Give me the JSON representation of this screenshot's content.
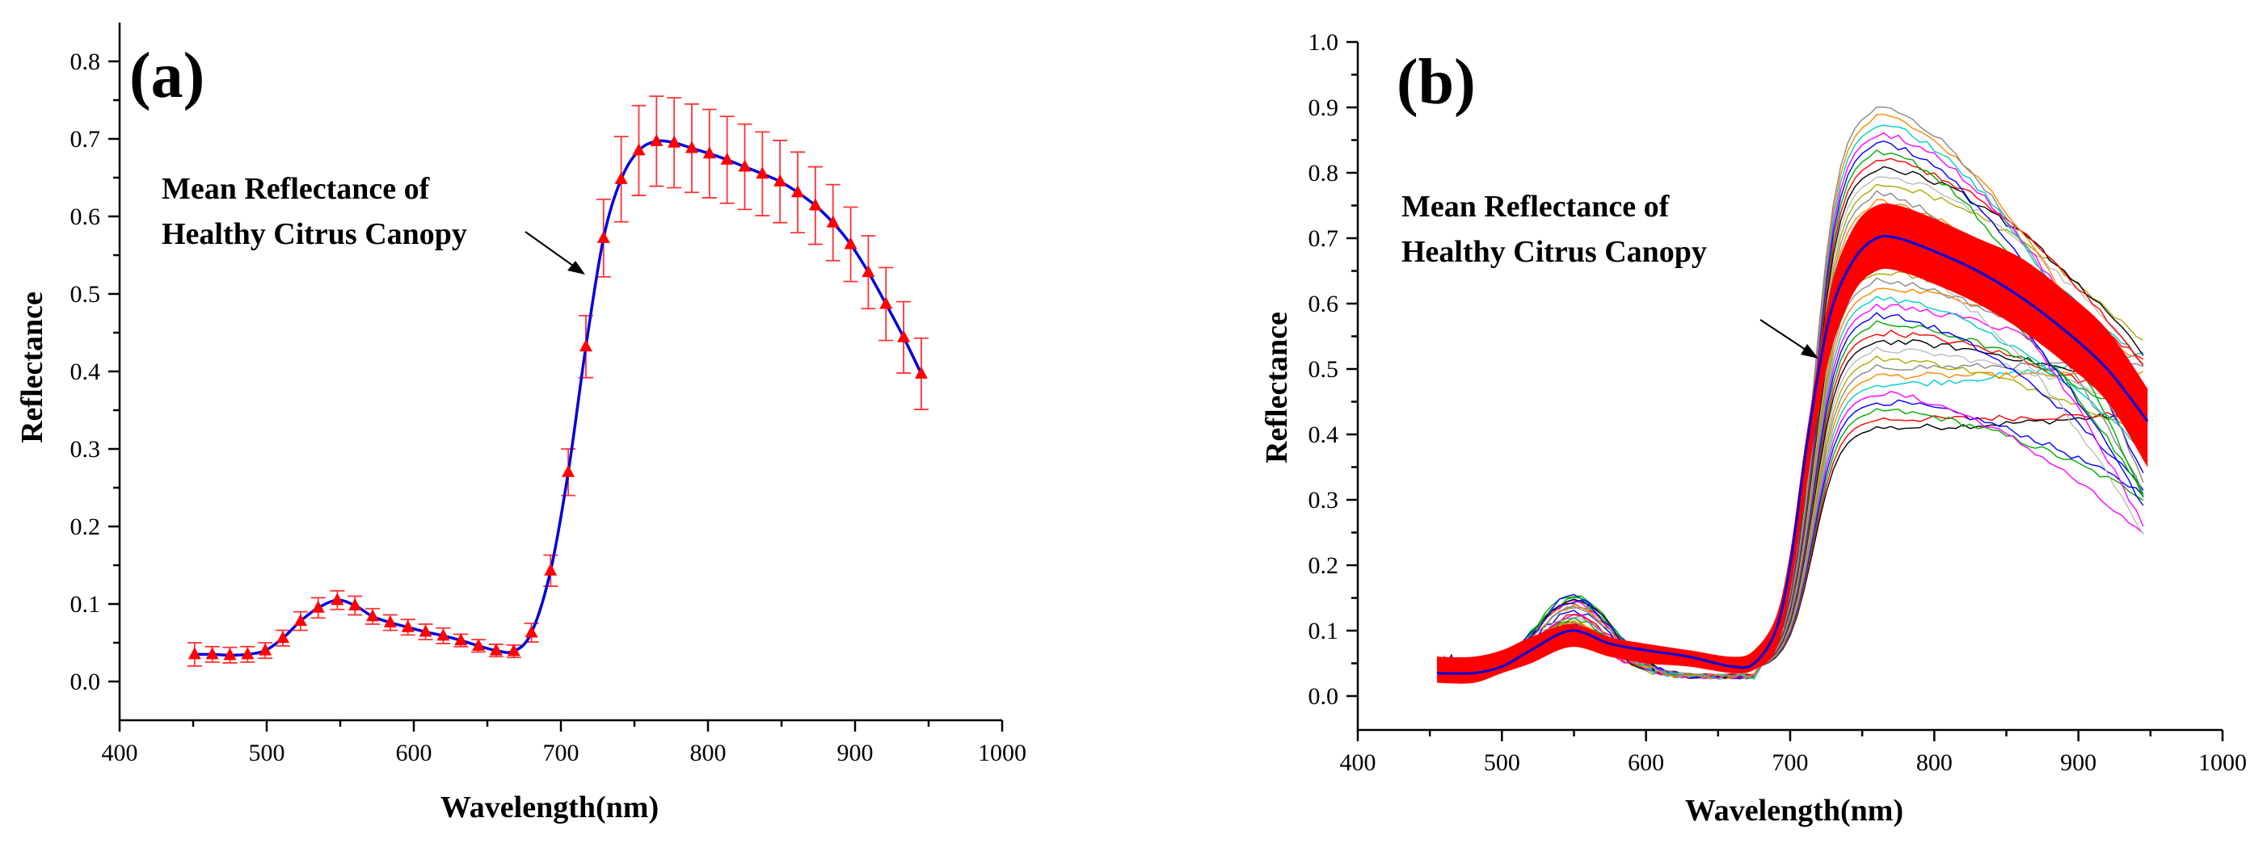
{
  "chart_data": [
    {
      "type": "line",
      "panel_label": "(a)",
      "xlabel": "Wavelength(nm)",
      "ylabel": "Reflectance",
      "xlim": [
        400,
        1000
      ],
      "ylim": [
        -0.05,
        0.85
      ],
      "xticks": [
        "400",
        "500",
        "600",
        "700",
        "800",
        "900",
        "1000"
      ],
      "yticks": [
        "0.0",
        "0.1",
        "0.2",
        "0.3",
        "0.4",
        "0.5",
        "0.6",
        "0.7",
        "0.8"
      ],
      "annotation": {
        "line1": "Mean Reflectance of",
        "line2": "Healthy Citrus Canopy",
        "points_to": [
          716,
          0.52
        ]
      },
      "series": [
        {
          "name": "Mean Reflectance of Healthy Citrus Canopy",
          "line_color": "#0000dd",
          "marker_color": "#ff0000",
          "errorbar_color": "#ff3333",
          "x": [
            451,
            463,
            475,
            487,
            499,
            511,
            523,
            535,
            548,
            560,
            572,
            584,
            596,
            608,
            620,
            632,
            644,
            656,
            668,
            680,
            693,
            705,
            717,
            729,
            741,
            753,
            765,
            777,
            789,
            801,
            813,
            825,
            837,
            849,
            861,
            873,
            885,
            897,
            909,
            921,
            933,
            945
          ],
          "y": [
            0.035,
            0.035,
            0.034,
            0.035,
            0.04,
            0.056,
            0.078,
            0.095,
            0.105,
            0.098,
            0.084,
            0.076,
            0.07,
            0.064,
            0.059,
            0.053,
            0.046,
            0.04,
            0.039,
            0.063,
            0.143,
            0.27,
            0.432,
            0.572,
            0.648,
            0.685,
            0.697,
            0.695,
            0.688,
            0.681,
            0.673,
            0.664,
            0.655,
            0.645,
            0.631,
            0.614,
            0.592,
            0.564,
            0.528,
            0.487,
            0.444,
            0.397
          ],
          "error": [
            0.015,
            0.01,
            0.01,
            0.01,
            0.01,
            0.01,
            0.012,
            0.013,
            0.012,
            0.012,
            0.01,
            0.01,
            0.01,
            0.01,
            0.01,
            0.008,
            0.008,
            0.008,
            0.008,
            0.012,
            0.02,
            0.03,
            0.04,
            0.05,
            0.055,
            0.058,
            0.058,
            0.058,
            0.057,
            0.057,
            0.056,
            0.055,
            0.054,
            0.053,
            0.052,
            0.05,
            0.049,
            0.048,
            0.047,
            0.047,
            0.046,
            0.046
          ]
        }
      ]
    },
    {
      "type": "line",
      "panel_label": "(b)",
      "xlabel": "Wavelength(nm)",
      "ylabel": "Reflectance",
      "xlim": [
        400,
        1000
      ],
      "ylim": [
        -0.05,
        1.0
      ],
      "xticks": [
        "400",
        "500",
        "600",
        "700",
        "800",
        "900",
        "1000"
      ],
      "yticks": [
        "0.0",
        "0.1",
        "0.2",
        "0.3",
        "0.4",
        "0.5",
        "0.6",
        "0.7",
        "0.8",
        "0.9",
        "1.0"
      ],
      "annotation": {
        "line1": "Mean Reflectance of",
        "line2": "Healthy Citrus Canopy",
        "points_to": [
          718,
          0.51
        ]
      },
      "mean_band": {
        "color": "#ff0000",
        "x": [
          455,
          480,
          500,
          520,
          548,
          575,
          600,
          630,
          660,
          675,
          690,
          700,
          710,
          720,
          730,
          745,
          760,
          775,
          800,
          830,
          860,
          890,
          920,
          948
        ],
        "upper": [
          0.06,
          0.06,
          0.07,
          0.09,
          0.11,
          0.09,
          0.08,
          0.07,
          0.06,
          0.07,
          0.12,
          0.22,
          0.38,
          0.52,
          0.64,
          0.72,
          0.75,
          0.75,
          0.73,
          0.7,
          0.67,
          0.62,
          0.56,
          0.47
        ],
        "lower": [
          0.02,
          0.02,
          0.035,
          0.05,
          0.075,
          0.06,
          0.05,
          0.045,
          0.035,
          0.04,
          0.07,
          0.16,
          0.3,
          0.44,
          0.54,
          0.62,
          0.65,
          0.65,
          0.63,
          0.6,
          0.56,
          0.51,
          0.45,
          0.35
        ]
      },
      "mean_series": {
        "color": "#0000dd",
        "x": [
          455,
          480,
          500,
          520,
          548,
          575,
          600,
          630,
          660,
          675,
          690,
          700,
          710,
          720,
          730,
          745,
          760,
          775,
          800,
          830,
          860,
          890,
          920,
          948
        ],
        "y": [
          0.035,
          0.035,
          0.045,
          0.07,
          0.1,
          0.08,
          0.07,
          0.06,
          0.045,
          0.05,
          0.1,
          0.2,
          0.36,
          0.5,
          0.6,
          0.67,
          0.7,
          0.7,
          0.68,
          0.65,
          0.61,
          0.56,
          0.5,
          0.42
        ]
      },
      "sample_curves": {
        "count": 38,
        "colors": [
          "#000000",
          "#ff0000",
          "#00aa00",
          "#0000ff",
          "#ff00ff",
          "#00cccc",
          "#ff8800",
          "#888888",
          "#aaaa00",
          "#bbbbbb"
        ],
        "peak_range": [
          0.41,
          0.9
        ],
        "end_range": [
          0.23,
          0.54
        ]
      }
    }
  ]
}
